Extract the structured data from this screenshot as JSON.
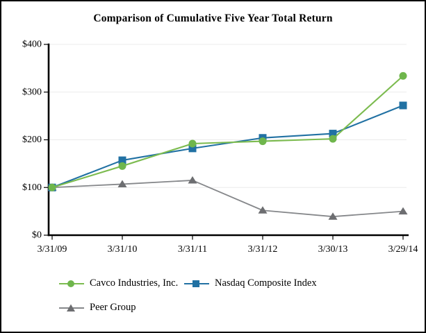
{
  "window": {
    "title": "Comparison of Cumulative Five Year Total Return"
  },
  "chart_data": {
    "type": "line",
    "title": "Comparison of Cumulative Five Year Total Return",
    "categories": [
      "3/31/09",
      "3/31/10",
      "3/31/11",
      "3/31/12",
      "3/30/13",
      "3/29/14"
    ],
    "series": [
      {
        "name": "Cavco Industries, Inc.",
        "marker": "circle",
        "color": "#6fb64c",
        "line_color": "#7cbb4f",
        "values": [
          100,
          145,
          192,
          197,
          202,
          334
        ]
      },
      {
        "name": "Nasdaq Composite Index",
        "marker": "square",
        "color": "#2171a3",
        "line_color": "#2171a3",
        "values": [
          100,
          157,
          182,
          204,
          213,
          272
        ]
      },
      {
        "name": "Peer Group",
        "marker": "triangle",
        "color": "#6d6e71",
        "line_color": "#85878a",
        "values": [
          100,
          107,
          115,
          52,
          39,
          50
        ]
      }
    ],
    "xlabel": "",
    "ylabel": "",
    "ylim": [
      0,
      400
    ],
    "y_ticks": [
      0,
      100,
      200,
      300,
      400
    ],
    "y_tick_labels": [
      "$0",
      "$100",
      "$200",
      "$300",
      "$400"
    ],
    "grid": true,
    "legend_position": "bottom",
    "colors": {
      "axis": "#000000",
      "gridline": "#ebebeb",
      "text": "#000000",
      "background": "#ffffff"
    }
  }
}
